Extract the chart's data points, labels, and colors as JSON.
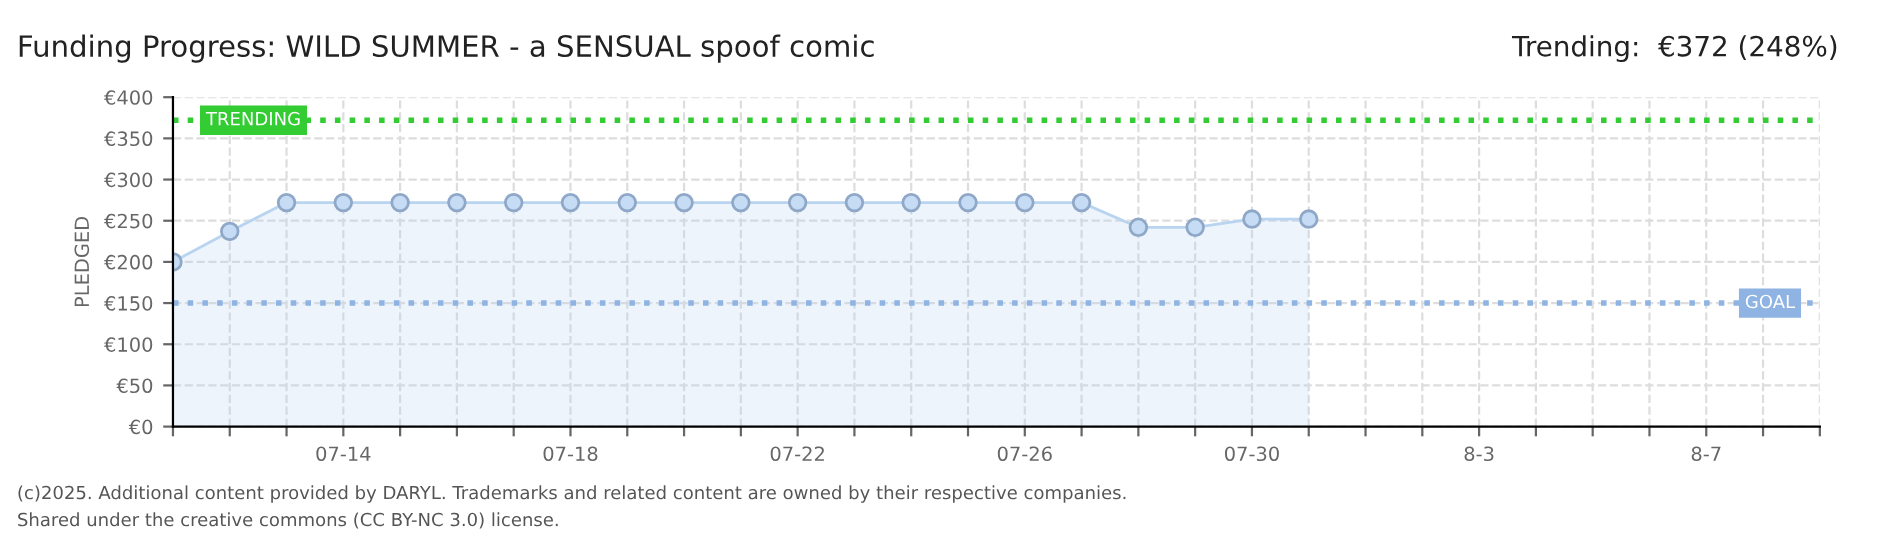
{
  "chart_data": {
    "type": "area",
    "title": "Funding Progress: WILD SUMMER - a SENSUAL spoof comic",
    "subtitle": "Trending:  €372 (248%)",
    "ylabel": "PLEDGED",
    "x": [
      "2025-07-11",
      "2025-07-12",
      "2025-07-13",
      "2025-07-14",
      "2025-07-15",
      "2025-07-16",
      "2025-07-17",
      "2025-07-18",
      "2025-07-19",
      "2025-07-20",
      "2025-07-21",
      "2025-07-22",
      "2025-07-23",
      "2025-07-24",
      "2025-07-25",
      "2025-07-26",
      "2025-07-27",
      "2025-07-28",
      "2025-07-29",
      "2025-07-30",
      "2025-07-31"
    ],
    "series": [
      {
        "color": "#b8d4f0",
        "values": [
          200,
          237,
          272,
          272,
          272,
          272,
          272,
          272,
          272,
          272,
          272,
          272,
          272,
          272,
          272,
          272,
          272,
          242,
          242,
          252,
          252
        ]
      }
    ],
    "marker": "circle",
    "line_style": "solid",
    "grid": true,
    "legend": false,
    "xlim": [
      "2025-07-11",
      "2025-08-09"
    ],
    "xticks": [
      {
        "value": "2025-07-11",
        "label": null
      },
      {
        "value": "2025-07-12",
        "label": null
      },
      {
        "value": "2025-07-13",
        "label": null
      },
      {
        "value": "2025-07-14",
        "label": "07-14"
      },
      {
        "value": "2025-07-15",
        "label": null
      },
      {
        "value": "2025-07-16",
        "label": null
      },
      {
        "value": "2025-07-17",
        "label": null
      },
      {
        "value": "2025-07-18",
        "label": "07-18"
      },
      {
        "value": "2025-07-19",
        "label": null
      },
      {
        "value": "2025-07-20",
        "label": null
      },
      {
        "value": "2025-07-21",
        "label": null
      },
      {
        "value": "2025-07-22",
        "label": "07-22"
      },
      {
        "value": "2025-07-23",
        "label": null
      },
      {
        "value": "2025-07-24",
        "label": null
      },
      {
        "value": "2025-07-25",
        "label": null
      },
      {
        "value": "2025-07-26",
        "label": "07-26"
      },
      {
        "value": "2025-07-27",
        "label": null
      },
      {
        "value": "2025-07-28",
        "label": null
      },
      {
        "value": "2025-07-29",
        "label": null
      },
      {
        "value": "2025-07-30",
        "label": "07-30"
      },
      {
        "value": "2025-07-31",
        "label": null
      },
      {
        "value": "2025-08-01",
        "label": null
      },
      {
        "value": "2025-08-02",
        "label": null
      },
      {
        "value": "2025-08-03",
        "label": "8-3"
      },
      {
        "value": "2025-08-04",
        "label": null
      },
      {
        "value": "2025-08-05",
        "label": null
      },
      {
        "value": "2025-08-06",
        "label": null
      },
      {
        "value": "2025-08-07",
        "label": "8-7"
      },
      {
        "value": "2025-08-08",
        "label": null
      },
      {
        "value": "2025-08-09",
        "label": null
      }
    ],
    "ylim": [
      0,
      400
    ],
    "yticks": [
      {
        "value": 0,
        "label": "€0"
      },
      {
        "value": 50,
        "label": "€50"
      },
      {
        "value": 100,
        "label": "€100"
      },
      {
        "value": 150,
        "label": "€150"
      },
      {
        "value": 200,
        "label": "€200"
      },
      {
        "value": 250,
        "label": "€250"
      },
      {
        "value": 300,
        "label": "€300"
      },
      {
        "value": 350,
        "label": "€350"
      },
      {
        "value": 400,
        "label": "€400"
      }
    ],
    "ref_lines": [
      {
        "axis": "y",
        "value": 372,
        "label": "TRENDING",
        "color": "#33cc33",
        "line_style": "dotted"
      },
      {
        "axis": "y",
        "value": 150,
        "label": "GOAL",
        "color": "#8fb4e3",
        "line_style": "dotted"
      }
    ],
    "annotations": [
      "(c)2025. Additional content provided by DARYL. Trademarks and related content are owned by their respective companies.",
      "Shared under the creative commons (CC BY-NC 3.0) license."
    ]
  }
}
